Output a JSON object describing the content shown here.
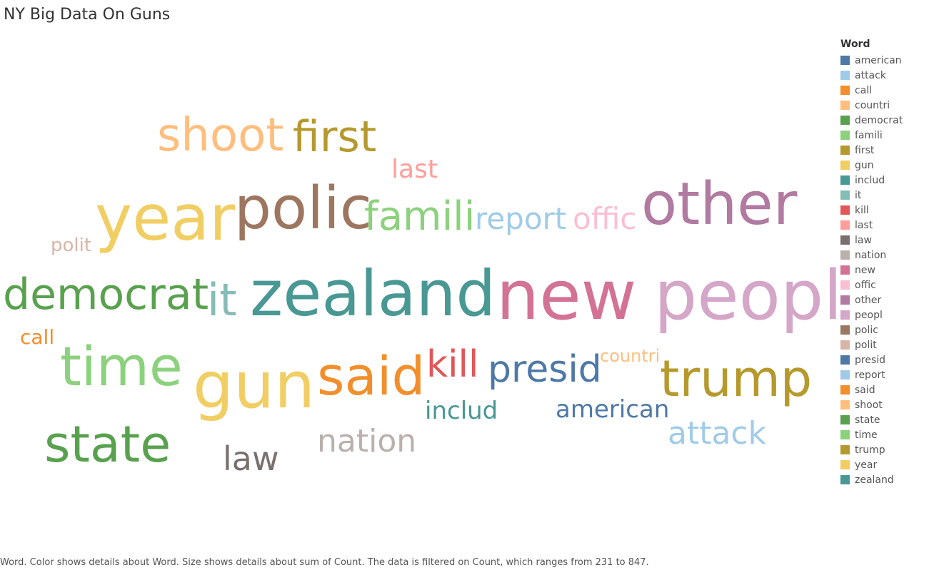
{
  "title": "NY Big Data On Guns",
  "legend_title": "Word",
  "caption": "Word.  Color shows details about Word.  Size shows details about sum of Count. The data is filtered on Count, which ranges from 231 to 847.",
  "chart_data": {
    "type": "wordcloud",
    "measure": "sum of Count",
    "count_range": [
      231,
      847
    ],
    "words": [
      {
        "word": "american",
        "color": "#4e79a7",
        "count": 330
      },
      {
        "word": "attack",
        "color": "#a0cbe8",
        "count": 360
      },
      {
        "word": "call",
        "color": "#f28e2b",
        "count": 231
      },
      {
        "word": "countri",
        "color": "#ffbe7d",
        "count": 240
      },
      {
        "word": "democrat",
        "color": "#59a14f",
        "count": 500
      },
      {
        "word": "famili",
        "color": "#8cd17d",
        "count": 480
      },
      {
        "word": "first",
        "color": "#b6992d",
        "count": 530
      },
      {
        "word": "gun",
        "color": "#f1ce63",
        "count": 790
      },
      {
        "word": "includ",
        "color": "#499894",
        "count": 320
      },
      {
        "word": "it",
        "color": "#86bcb6",
        "count": 510
      },
      {
        "word": "kill",
        "color": "#e15759",
        "count": 420
      },
      {
        "word": "last",
        "color": "#ff9d9a",
        "count": 330
      },
      {
        "word": "law",
        "color": "#79706e",
        "count": 400
      },
      {
        "word": "nation",
        "color": "#bab0ac",
        "count": 400
      },
      {
        "word": "new",
        "color": "#d37295",
        "count": 847
      },
      {
        "word": "offic",
        "color": "#fabfd2",
        "count": 380
      },
      {
        "word": "other",
        "color": "#b07aa1",
        "count": 720
      },
      {
        "word": "peopl",
        "color": "#d4a6c8",
        "count": 800
      },
      {
        "word": "polic",
        "color": "#9d7660",
        "count": 690
      },
      {
        "word": "polit",
        "color": "#d7b5a6",
        "count": 240
      },
      {
        "word": "presid",
        "color": "#4e79a7",
        "count": 430
      },
      {
        "word": "report",
        "color": "#a0cbe8",
        "count": 380
      },
      {
        "word": "said",
        "color": "#f28e2b",
        "count": 650
      },
      {
        "word": "shoot",
        "color": "#ffbe7d",
        "count": 580
      },
      {
        "word": "state",
        "color": "#59a14f",
        "count": 610
      },
      {
        "word": "time",
        "color": "#8cd17d",
        "count": 640
      },
      {
        "word": "trump",
        "color": "#b6992d",
        "count": 620
      },
      {
        "word": "year",
        "color": "#f1ce63",
        "count": 780
      },
      {
        "word": "zealand",
        "color": "#499894",
        "count": 830
      }
    ]
  }
}
